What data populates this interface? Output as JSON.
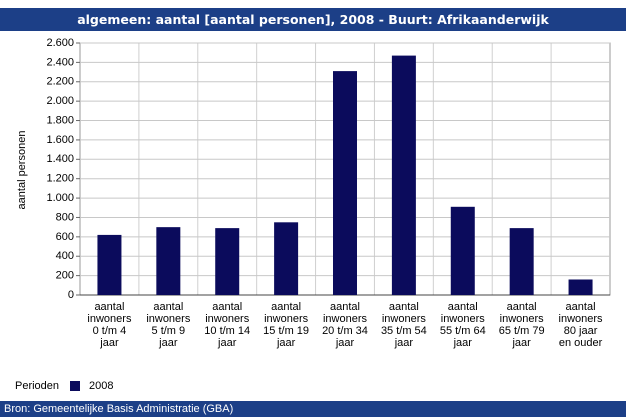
{
  "chart_data": {
    "type": "bar",
    "title": "algemeen: aantal [aantal personen], 2008 - Buurt: Afrikaanderwijk",
    "y_label": "aantal personen",
    "categories": [
      "aantal\ninwoners\n0 t/m 4\njaar",
      "aantal\ninwoners\n5 t/m 9\njaar",
      "aantal\ninwoners\n10 t/m 14\njaar",
      "aantal\ninwoners\n15 t/m 19\njaar",
      "aantal\ninwoners\n20 t/m 34\njaar",
      "aantal\ninwoners\n35 t/m 54\njaar",
      "aantal\ninwoners\n55 t/m 64\njaar",
      "aantal\ninwoners\n65 t/m 79\njaar",
      "aantal\ninwoners\n80 jaar\nen ouder"
    ],
    "legend_title": "Perioden",
    "series": [
      {
        "name": "2008",
        "color": "#0b0b5c",
        "values": [
          620,
          700,
          690,
          750,
          2310,
          2470,
          910,
          690,
          160
        ]
      }
    ],
    "ylim": [
      0,
      2600
    ],
    "yticks": [
      0,
      200,
      400,
      600,
      800,
      {
        "value": 1000,
        "label": "1.000"
      },
      {
        "value": 1200,
        "label": "1.200"
      },
      {
        "value": 1400,
        "label": "1.400"
      },
      {
        "value": 1600,
        "label": "1.600"
      },
      {
        "value": 1800,
        "label": "1.800"
      },
      {
        "value": 2000,
        "label": "2.000"
      },
      {
        "value": 2200,
        "label": "2.200"
      },
      {
        "value": 2400,
        "label": "2.400"
      },
      {
        "value": 2600,
        "label": "2.600"
      }
    ],
    "grid": true,
    "source": "Bron: Gemeentelijke Basis Administratie (GBA)"
  }
}
